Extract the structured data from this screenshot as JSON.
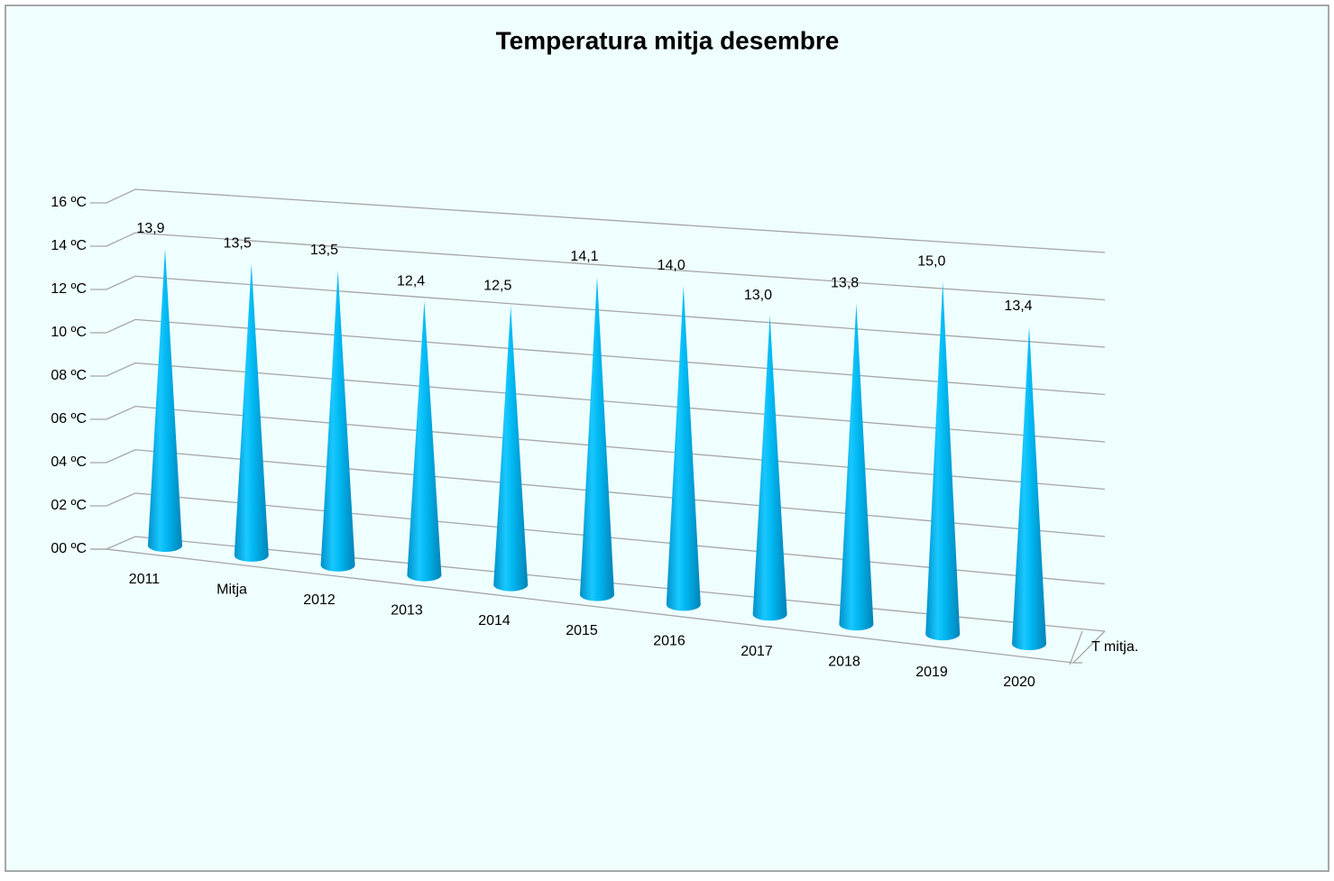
{
  "chart_data": {
    "type": "cone",
    "title": "Temperatura mitja desembre",
    "categories": [
      "2011",
      "Mitja",
      "2012",
      "2013",
      "2014",
      "2015",
      "2016",
      "2017",
      "2018",
      "2019",
      "2020"
    ],
    "series": [
      {
        "name": "T mitja.",
        "color": "#00b0f0",
        "values": [
          13.9,
          13.5,
          13.5,
          12.4,
          12.5,
          14.1,
          14.0,
          13.0,
          13.8,
          15.0,
          13.4
        ],
        "value_labels": [
          "13,9",
          "13,5",
          "13,5",
          "12,4",
          "12,5",
          "14,1",
          "14,0",
          "13,0",
          "13,8",
          "15,0",
          "13,4"
        ]
      }
    ],
    "ylim": [
      0,
      16
    ],
    "yticks": [
      {
        "value": 0,
        "label": "00 ºC"
      },
      {
        "value": 2,
        "label": "02 ºC"
      },
      {
        "value": 4,
        "label": "04 ºC"
      },
      {
        "value": 6,
        "label": "06 ºC"
      },
      {
        "value": 8,
        "label": "08 ºC"
      },
      {
        "value": 10,
        "label": "10 ºC"
      },
      {
        "value": 12,
        "label": "12 ºC"
      },
      {
        "value": 14,
        "label": "14 ºC"
      },
      {
        "value": 16,
        "label": "16 ºC"
      }
    ],
    "grid": true
  }
}
